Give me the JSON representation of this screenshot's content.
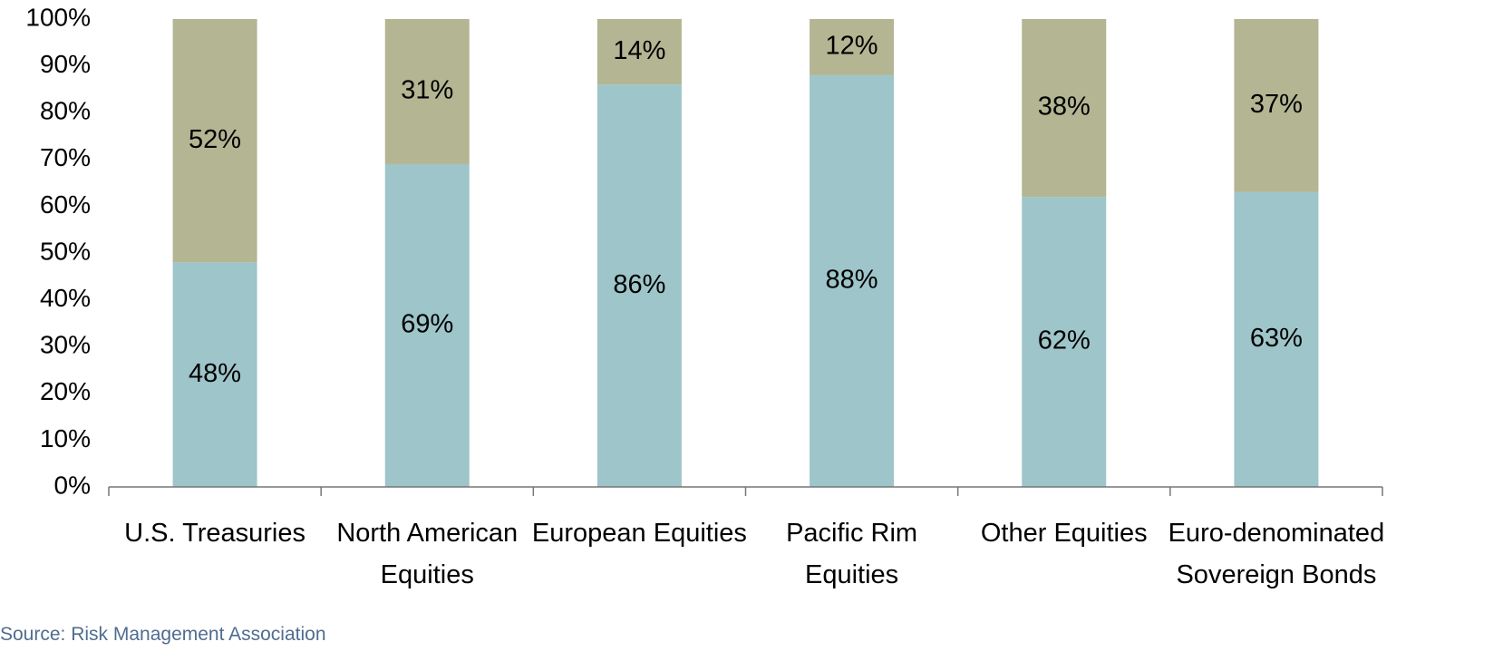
{
  "chart_data": {
    "type": "stacked_bar",
    "categories": [
      "U.S. Treasuries",
      "North American Equities",
      "European Equities",
      "Pacific Rim Equities",
      "Other Equities",
      "Euro-denominated Sovereign Bonds"
    ],
    "series": [
      {
        "color": "#9ec5c9",
        "values": [
          48,
          69,
          86,
          88,
          62,
          63
        ],
        "value_labels": [
          "48%",
          "69%",
          "86%",
          "88%",
          "62%",
          "63%"
        ]
      },
      {
        "color": "#b3b593",
        "values": [
          52,
          31,
          14,
          12,
          38,
          37
        ],
        "value_labels": [
          "52%",
          "31%",
          "14%",
          "12%",
          "38%",
          "37%"
        ]
      }
    ],
    "ylim": [
      0,
      100
    ],
    "yticks": [
      {
        "value": 0,
        "label": "0%"
      },
      {
        "value": 10,
        "label": "10%"
      },
      {
        "value": 20,
        "label": "20%"
      },
      {
        "value": 30,
        "label": "30%"
      },
      {
        "value": 40,
        "label": "40%"
      },
      {
        "value": 50,
        "label": "50%"
      },
      {
        "value": 60,
        "label": "60%"
      },
      {
        "value": 70,
        "label": "70%"
      },
      {
        "value": 80,
        "label": "80%"
      },
      {
        "value": 90,
        "label": "90%"
      },
      {
        "value": 100,
        "label": "100%"
      }
    ],
    "source": "Source: Risk Management Association"
  }
}
